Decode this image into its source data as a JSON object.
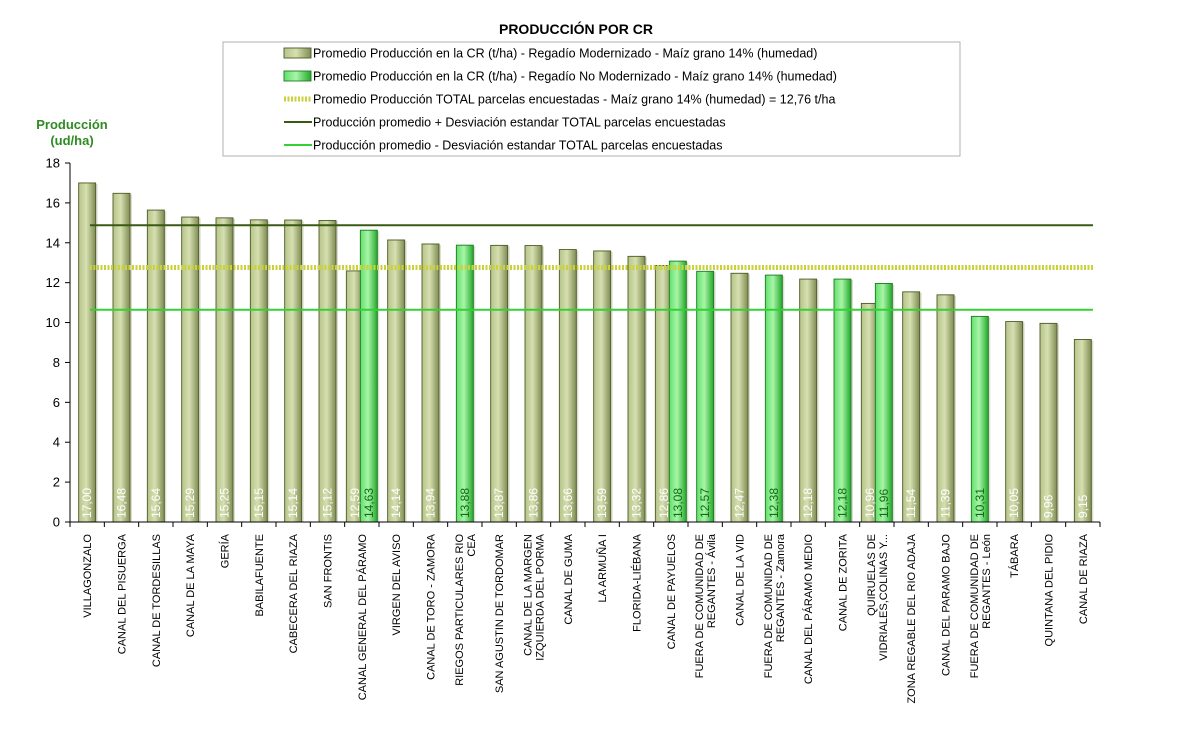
{
  "chart_data": {
    "type": "bar",
    "title": "PRODUCCIÓN POR CR",
    "ylabel_line1": "Producción",
    "ylabel_line2": "(ud/ha)",
    "ylim": [
      0,
      18
    ],
    "yticks": [
      0,
      2,
      4,
      6,
      8,
      10,
      12,
      14,
      16,
      18
    ],
    "grid": false,
    "legend_position": "top-center",
    "colors": {
      "modernizado": "#b5c48a",
      "no_modernizado": "#62e06a",
      "total_avg": "#c8d23a",
      "plus_sd": "#3a5a14",
      "minus_sd": "#33d133"
    },
    "legend": [
      "Promedio Producción en la CR (t/ha) - Regadío Modernizado  - Maíz grano 14% (humedad)",
      "Promedio Producción en la CR (t/ha) - Regadío No Modernizado  - Maíz grano 14% (humedad)",
      "Promedio Producción TOTAL parcelas encuestadas - Maíz grano 14% (humedad) = 12,76 t/ha",
      "Producción promedio + Desviación estandar TOTAL parcelas encuestadas",
      "Producción promedio - Desviación estandar TOTAL parcelas encuestadas"
    ],
    "categories": [
      [
        "VILLAGONZALO"
      ],
      [
        "CANAL DEL PISUERGA"
      ],
      [
        "CANAL DE TORDESILLAS"
      ],
      [
        "CANAL DE LA MAYA"
      ],
      [
        "GERÍA"
      ],
      [
        "BABILAFUENTE"
      ],
      [
        "CABECERA DEL RIAZA"
      ],
      [
        "SAN FRONTIS"
      ],
      [
        "CANAL GENERAL DEL PÁRAMO"
      ],
      [
        "VIRGEN DEL AVISO"
      ],
      [
        "CANAL DE TORO - ZAMORA"
      ],
      [
        "RIEGOS PARTICULARES RIO",
        "CEA"
      ],
      [
        "SAN AGUSTIN DE TORDOMAR"
      ],
      [
        "CANAL DE LA MARGEN",
        "IZQUIERDA DEL PORMA"
      ],
      [
        "CANAL DE GUMA"
      ],
      [
        "LA ARMUÑA I"
      ],
      [
        "FLORIDA-LIÉBANA"
      ],
      [
        "CANAL DE PAYUELOS"
      ],
      [
        "FUERA DE COMUNIDAD DE",
        "REGANTES - Ávila"
      ],
      [
        "CANAL DE LA VID"
      ],
      [
        "FUERA DE COMUNIDAD DE",
        "REGANTES - Zamora"
      ],
      [
        "CANAL DEL PÁRAMO MEDIO"
      ],
      [
        "CANAL DE ZORITA"
      ],
      [
        "QUIRUELAS DE",
        "VIDRIALES,COLINAS Y..."
      ],
      [
        "ZONA REGABLE DEL RIO ADAJA"
      ],
      [
        "CANAL DEL PARAMO BAJO"
      ],
      [
        "FUERA DE COMUNIDAD DE",
        "REGANTES - León"
      ],
      [
        "TÁBARA"
      ],
      [
        "QUINTANA DEL PIDIO"
      ],
      [
        "CANAL DE RIAZA"
      ]
    ],
    "series": [
      {
        "key": "modernizado",
        "values": [
          17.0,
          16.48,
          15.64,
          15.29,
          15.25,
          15.15,
          15.14,
          15.12,
          12.59,
          14.14,
          13.94,
          null,
          13.87,
          13.86,
          13.66,
          13.59,
          13.32,
          12.86,
          null,
          12.47,
          null,
          12.18,
          null,
          10.96,
          11.54,
          11.39,
          null,
          10.05,
          9.96,
          9.15
        ],
        "labels": [
          "17,00",
          "16,48",
          "15,64",
          "15,29",
          "15,25",
          "15,15",
          "15,14",
          "15,12",
          "12,59",
          "14,14",
          "13,94",
          null,
          "13,87",
          "13,86",
          "13,66",
          "13,59",
          "13,32",
          "12,86",
          null,
          "12,47",
          null,
          "12,18",
          null,
          "10,96",
          "11,54",
          "11,39",
          null,
          "10,05",
          "9,96",
          "9,15"
        ]
      },
      {
        "key": "no_modernizado",
        "values": [
          null,
          null,
          null,
          null,
          null,
          null,
          null,
          null,
          14.63,
          null,
          null,
          13.88,
          null,
          null,
          null,
          null,
          null,
          13.08,
          12.57,
          null,
          12.38,
          null,
          12.18,
          11.96,
          null,
          null,
          10.31,
          null,
          null,
          null
        ],
        "labels": [
          null,
          null,
          null,
          null,
          null,
          null,
          null,
          null,
          "14,63",
          null,
          null,
          "13,88",
          null,
          null,
          null,
          null,
          null,
          "13,08",
          "12,57",
          null,
          "12,38",
          null,
          "12,18",
          "11,96",
          null,
          null,
          "10,31",
          null,
          null,
          null
        ]
      }
    ],
    "reference_lines": {
      "total_avg": 12.76,
      "plus_sd": 14.88,
      "minus_sd": 10.64
    }
  }
}
